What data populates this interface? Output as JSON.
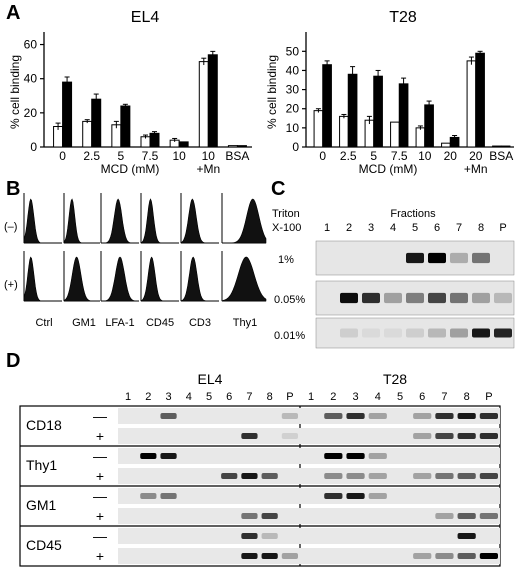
{
  "panels": {
    "A": "A",
    "B": "B",
    "C": "C",
    "D": "D"
  },
  "chart_data": [
    {
      "type": "bar",
      "title": "EL4",
      "xlabel": "MCD (mM)",
      "ylabel": "% cell binding",
      "ylim": [
        0,
        65
      ],
      "yticks": [
        "0",
        "20",
        "40",
        "60"
      ],
      "categories": [
        "0",
        "2.5",
        "5",
        "7.5",
        "10",
        "10\n+Mn",
        "BSA"
      ],
      "series": [
        {
          "fill": "white",
          "values": [
            12,
            15,
            13,
            6,
            4,
            50,
            0.8
          ]
        },
        {
          "fill": "black",
          "values": [
            38,
            28,
            24,
            8,
            3,
            54,
            0.8
          ]
        }
      ],
      "errors": [
        [
          2,
          1,
          2,
          1,
          1,
          2,
          0
        ],
        [
          3,
          3,
          1,
          1,
          0,
          2,
          0
        ]
      ]
    },
    {
      "type": "bar",
      "title": "T28",
      "xlabel": "MCD (mM)",
      "ylabel": "% cell binding",
      "ylim": [
        0,
        58
      ],
      "yticks": [
        "0",
        "10",
        "20",
        "30",
        "40",
        "50"
      ],
      "categories": [
        "0",
        "2.5",
        "5",
        "7.5",
        "10",
        "20",
        "20\n+Mn",
        "BSA"
      ],
      "series": [
        {
          "fill": "white",
          "values": [
            19,
            16,
            14,
            13,
            10,
            2,
            45,
            0.5
          ]
        },
        {
          "fill": "black",
          "values": [
            43,
            38,
            37,
            33,
            22,
            5,
            49,
            0.5
          ]
        }
      ],
      "errors": [
        [
          1,
          1,
          2,
          0,
          1,
          0,
          2,
          0
        ],
        [
          2,
          4,
          3,
          3,
          2,
          1,
          1,
          0
        ]
      ]
    }
  ],
  "flow": {
    "rows": [
      "(–)",
      "(+)"
    ],
    "labels": [
      "Ctrl",
      "GM1",
      "LFA-1",
      "CD45",
      "CD3",
      "Thy1"
    ]
  },
  "triton": {
    "header1": "Triton",
    "header2": "X-100",
    "fractions_title": "Fractions",
    "lanes": [
      "1",
      "2",
      "3",
      "4",
      "5",
      "6",
      "7",
      "8",
      "P"
    ],
    "rows": [
      "1%",
      "0.05%",
      "0.01%"
    ]
  },
  "blots": {
    "cells": [
      "EL4",
      "T28"
    ],
    "lanes": [
      "1",
      "2",
      "3",
      "4",
      "5",
      "6",
      "7",
      "8",
      "P"
    ],
    "groups": [
      {
        "name": "CD18",
        "signs": [
          "—",
          "+"
        ]
      },
      {
        "name": "Thy1",
        "signs": [
          "—",
          "+"
        ]
      },
      {
        "name": "GM1",
        "signs": [
          "—",
          "+"
        ]
      },
      {
        "name": "CD45",
        "signs": [
          "—",
          "+"
        ]
      }
    ]
  }
}
